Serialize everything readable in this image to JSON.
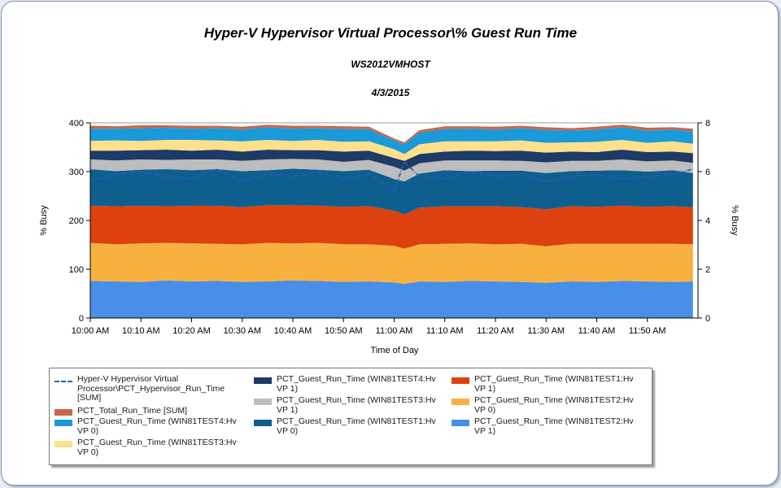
{
  "titles": {
    "main": "Hyper-V Hypervisor Virtual Processor\\% Guest Run Time",
    "sub": "WS2012VMHOST",
    "date": "4/3/2015"
  },
  "chart_data": {
    "type": "area",
    "stacked": true,
    "title": "Hyper-V Hypervisor Virtual Processor\\% Guest Run Time",
    "subtitle": "WS2012VMHOST",
    "date": "4/3/2015",
    "xlabel": "Time of Day",
    "ylabel": "% Busy",
    "y2label": "% Busy",
    "ylim": [
      0,
      400
    ],
    "y2lim": [
      0,
      8
    ],
    "yticks": [
      0,
      100,
      200,
      300,
      400
    ],
    "y2ticks": [
      0,
      2,
      4,
      6,
      8
    ],
    "xtick_labels": [
      "10:00 AM",
      "10:10 AM",
      "10:20 AM",
      "10:30 AM",
      "10:40 AM",
      "10:50 AM",
      "11:00 AM",
      "11:10 AM",
      "11:20 AM",
      "11:30 AM",
      "11:40 AM",
      "11:50 AM"
    ],
    "x_minutes": [
      0,
      5,
      10,
      15,
      20,
      25,
      30,
      35,
      40,
      45,
      50,
      55,
      60,
      62,
      65,
      70,
      75,
      80,
      85,
      90,
      95,
      100,
      105,
      110,
      115,
      119
    ],
    "legend_position": "bottom",
    "series": [
      {
        "name": "PCT_Guest_Run_Time (WIN81TEST2:Hv VP 1)",
        "color": "#4a8fe7",
        "values": [
          76,
          75,
          74,
          77,
          75,
          76,
          74,
          75,
          77,
          76,
          74,
          75,
          73,
          70,
          75,
          74,
          76,
          75,
          74,
          72,
          75,
          74,
          76,
          75,
          74,
          75
        ]
      },
      {
        "name": "PCT_Guest_Run_Time (WIN81TEST2:Hv VP 0)",
        "color": "#f8b13f",
        "values": [
          78,
          76,
          79,
          77,
          78,
          76,
          77,
          79,
          76,
          78,
          77,
          76,
          75,
          72,
          76,
          78,
          77,
          76,
          78,
          75,
          77,
          78,
          76,
          77,
          78,
          76
        ]
      },
      {
        "name": "PCT_Guest_Run_Time (WIN81TEST1:Hv VP 1)",
        "color": "#dd410f",
        "values": [
          76,
          78,
          77,
          75,
          77,
          78,
          76,
          77,
          78,
          76,
          77,
          78,
          72,
          70,
          75,
          77,
          76,
          78,
          75,
          76,
          77,
          76,
          78,
          76,
          77,
          76
        ]
      },
      {
        "name": "PCT_Guest_Run_Time (WIN81TEST1:Hv VP 0)",
        "color": "#0f5f8e",
        "values": [
          75,
          72,
          74,
          76,
          73,
          75,
          74,
          72,
          75,
          74,
          73,
          75,
          65,
          68,
          70,
          74,
          72,
          73,
          75,
          74,
          72,
          74,
          73,
          72,
          74,
          70
        ]
      },
      {
        "name": "PCT_Guest_Run_Time (WIN81TEST3:Hv VP 1)",
        "color": "#bdbdbd",
        "values": [
          20,
          22,
          21,
          19,
          22,
          20,
          21,
          22,
          20,
          21,
          19,
          20,
          25,
          22,
          21,
          20,
          22,
          21,
          20,
          22,
          21,
          20,
          22,
          21,
          20,
          21
        ]
      },
      {
        "name": "PCT_Guest_Run_Time (WIN81TEST4:Hv VP 1)",
        "color": "#1e3a66",
        "values": [
          18,
          20,
          19,
          21,
          18,
          20,
          19,
          20,
          18,
          19,
          21,
          19,
          18,
          20,
          19,
          18,
          20,
          19,
          21,
          20,
          19,
          18,
          20,
          19,
          18,
          20
        ]
      },
      {
        "name": "PCT_Guest_Run_Time (WIN81TEST3:Hv VP 0)",
        "color": "#fde08c",
        "values": [
          20,
          21,
          19,
          20,
          22,
          19,
          21,
          20,
          19,
          21,
          20,
          19,
          18,
          14,
          20,
          21,
          19,
          20,
          21,
          20,
          19,
          21,
          20,
          19,
          21,
          19
        ]
      },
      {
        "name": "PCT_Guest_Run_Time (WIN81TEST4:Hv VP 0)",
        "color": "#1a9ad8",
        "values": [
          25,
          24,
          26,
          25,
          23,
          25,
          24,
          26,
          25,
          24,
          26,
          25,
          18,
          20,
          24,
          25,
          26,
          24,
          25,
          26,
          24,
          25,
          26,
          25,
          24,
          25
        ]
      },
      {
        "name": "PCT_Total_Run_Time [SUM]",
        "color": "#c8674d",
        "values": [
          6,
          5,
          6,
          5,
          6,
          5,
          6,
          5,
          6,
          5,
          6,
          5,
          4,
          4,
          5,
          6,
          5,
          6,
          5,
          6,
          5,
          6,
          5,
          6,
          5,
          6
        ]
      }
    ],
    "line_series": {
      "name": "Hyper-V Hypervisor Virtual Processor\\PCT_Hypervisor_Run_Time [SUM]",
      "axis": "right",
      "color": "#1f5fbf",
      "values": [
        5.6,
        5.9,
        6.0,
        5.8,
        5.7,
        6.1,
        5.6,
        5.9,
        5.8,
        6.0,
        5.7,
        5.9,
        5.2,
        6.4,
        5.8,
        5.7,
        6.0,
        5.8,
        5.9,
        5.6,
        5.8,
        5.9,
        5.7,
        5.8,
        5.9,
        6.1
      ]
    }
  },
  "legend": {
    "items": [
      {
        "label": "Hyper-V Hypervisor Virtual Processor\\PCT_Hypervisor_Run_Time [SUM]",
        "color": "#1f5fbf",
        "kind": "line"
      },
      {
        "label": "PCT_Total_Run_Time [SUM]",
        "color": "#c8674d",
        "kind": "area"
      },
      {
        "label": "PCT_Guest_Run_Time (WIN81TEST4:Hv VP 0)",
        "color": "#1a9ad8",
        "kind": "area"
      },
      {
        "label": "PCT_Guest_Run_Time (WIN81TEST3:Hv VP 0)",
        "color": "#fde08c",
        "kind": "area"
      },
      {
        "label": "PCT_Guest_Run_Time (WIN81TEST4:Hv VP 1)",
        "color": "#1e3a66",
        "kind": "area"
      },
      {
        "label": "PCT_Guest_Run_Time (WIN81TEST3:Hv VP 1)",
        "color": "#bdbdbd",
        "kind": "area"
      },
      {
        "label": "PCT_Guest_Run_Time (WIN81TEST1:Hv VP 0)",
        "color": "#0f5f8e",
        "kind": "area"
      },
      {
        "label": "PCT_Guest_Run_Time (WIN81TEST1:Hv VP 1)",
        "color": "#dd410f",
        "kind": "area"
      },
      {
        "label": "PCT_Guest_Run_Time (WIN81TEST2:Hv VP 0)",
        "color": "#f8b13f",
        "kind": "area"
      },
      {
        "label": "PCT_Guest_Run_Time (WIN81TEST2:Hv VP 1)",
        "color": "#4a8fe7",
        "kind": "area"
      }
    ]
  }
}
